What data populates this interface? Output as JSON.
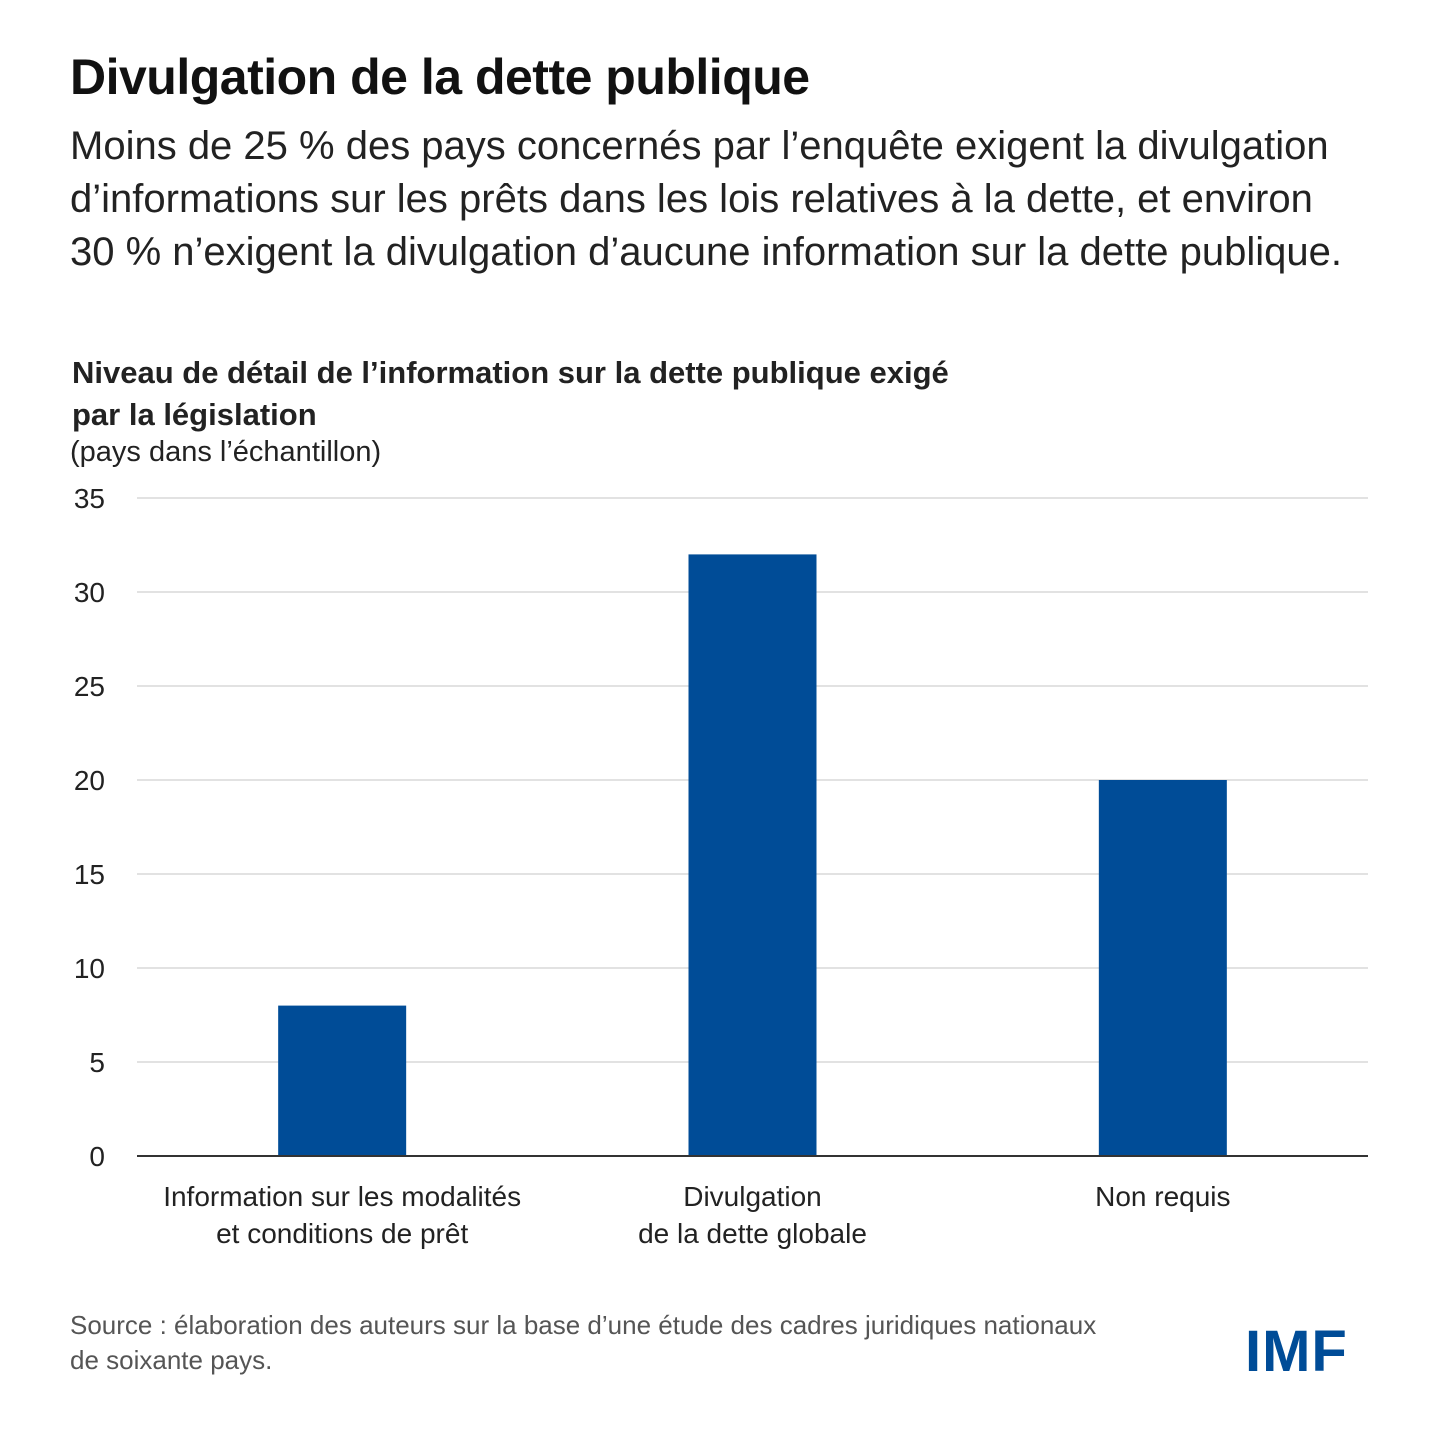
{
  "title": "Divulgation de la dette publique",
  "subtitle": "Moins de 25 % des pays concernés par l’enquête exigent la divulgation d’informations sur les prêts dans les lois relatives à la dette, et environ 30 % n’exigent la divulgation d’aucune information sur la dette publique.",
  "source": "Source : élaboration des auteurs sur la base d’une étude des cadres juridiques nationaux de soixante pays.",
  "logo": "IMF",
  "colors": {
    "bar": "#004C97",
    "grid": "#d9d9d9",
    "axis": "#333333"
  },
  "chart_data": {
    "type": "bar",
    "title": "Niveau de détail de l’information sur la dette publique exigé par la législation",
    "ylabel": "(pays dans l’échantillon)",
    "xlabel": "",
    "categories": [
      "Information sur les modalités\net conditions de prêt",
      "Divulgation\nde la dette globale",
      "Non requis"
    ],
    "values": [
      8,
      32,
      20
    ],
    "ylim": [
      0,
      35
    ],
    "yticks": [
      "0",
      "5",
      "10",
      "15",
      "20",
      "25",
      "30",
      "35"
    ],
    "grid": true,
    "legend": "none"
  }
}
